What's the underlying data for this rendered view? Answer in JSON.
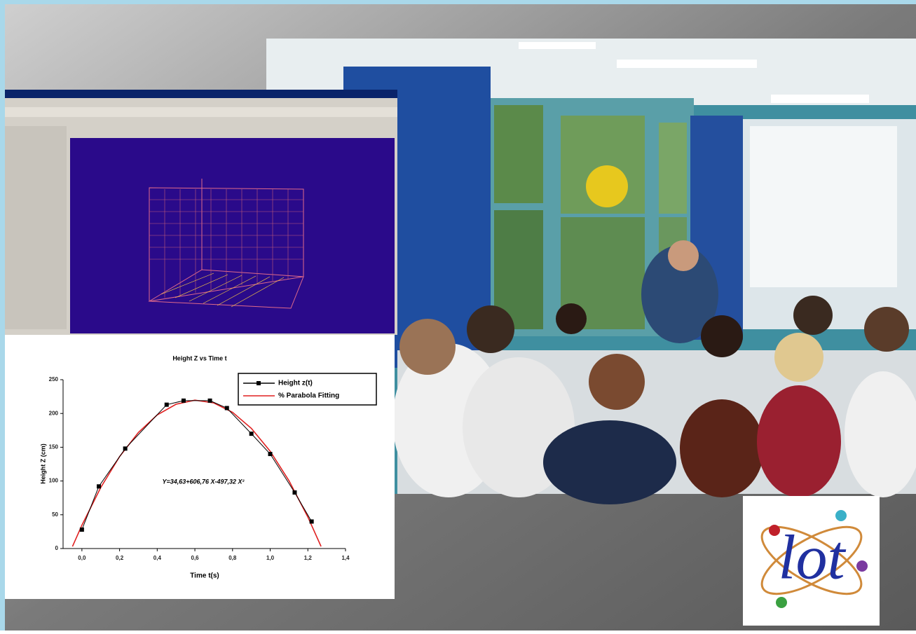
{
  "logo": "lot",
  "chart_data": {
    "type": "line",
    "title": "Height Z vs Time t",
    "xlabel": "Time t(s)",
    "ylabel": "Height Z (cm)",
    "annotation": "Y=34,63+606,76 X-497,32 X²",
    "series": [
      {
        "name": "Height z(t)",
        "color": "#000000",
        "marker": "square",
        "x": [
          0.0,
          0.09,
          0.23,
          0.45,
          0.54,
          0.68,
          0.77,
          0.9,
          1.0,
          1.13,
          1.22
        ],
        "values": [
          28,
          92,
          148,
          213,
          219,
          219,
          208,
          170,
          140,
          83,
          40
        ]
      },
      {
        "name": "% Parabola Fitting",
        "color": "#e02020",
        "marker": "none",
        "x": [
          -0.05,
          0.0,
          0.1,
          0.2,
          0.3,
          0.4,
          0.5,
          0.6,
          0.7,
          0.8,
          0.9,
          1.0,
          1.1,
          1.2,
          1.27
        ],
        "values": [
          3,
          34.6,
          90.3,
          136.1,
          171.9,
          197.8,
          213.7,
          219.7,
          215.7,
          201.8,
          177.9,
          144.1,
          100.3,
          46.6,
          3.1
        ]
      }
    ],
    "xlim": [
      -0.1,
      1.4
    ],
    "xticks": [
      {
        "value": 0,
        "label": "0,0"
      },
      {
        "value": 0.2,
        "label": "0,2"
      },
      {
        "value": 0.4,
        "label": "0,4"
      },
      {
        "value": 0.6,
        "label": "0,6"
      },
      {
        "value": 0.8,
        "label": "0,8"
      },
      {
        "value": 1.0,
        "label": "1,0"
      },
      {
        "value": 1.2,
        "label": "1,2"
      },
      {
        "value": 1.4,
        "label": "1,4"
      }
    ],
    "ylim": [
      0,
      250
    ],
    "yticks": [
      0,
      50,
      100,
      150,
      200,
      250
    ],
    "grid": false,
    "legend": "upper right"
  }
}
